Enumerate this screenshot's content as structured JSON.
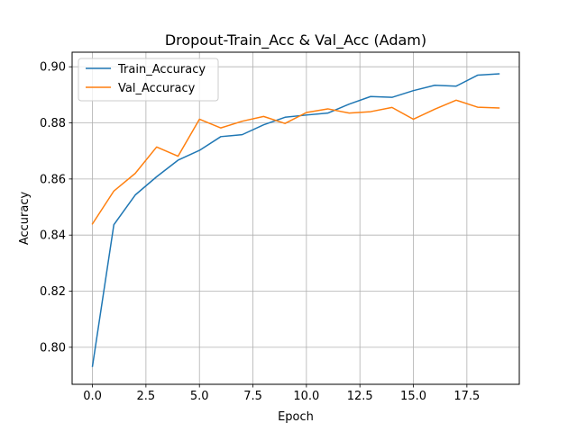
{
  "chart_data": {
    "type": "line",
    "title": "Dropout-Train_Acc & Val_Acc (Adam)",
    "xlabel": "Epoch",
    "ylabel": "Accuracy",
    "xlim": [
      -0.95,
      19.95
    ],
    "ylim": [
      0.7868,
      0.9052
    ],
    "grid": true,
    "legend_position": "top-left",
    "x": [
      0,
      1,
      2,
      3,
      4,
      5,
      6,
      7,
      8,
      9,
      10,
      11,
      12,
      13,
      14,
      15,
      16,
      17,
      18,
      19
    ],
    "x_ticks": [
      0.0,
      2.5,
      5.0,
      7.5,
      10.0,
      12.5,
      15.0,
      17.5
    ],
    "x_tick_labels": [
      "0.0",
      "2.5",
      "5.0",
      "7.5",
      "10.0",
      "12.5",
      "15.0",
      "17.5"
    ],
    "y_ticks": [
      0.8,
      0.82,
      0.84,
      0.86,
      0.88,
      0.9
    ],
    "y_tick_labels": [
      "0.80",
      "0.82",
      "0.84",
      "0.86",
      "0.88",
      "0.90"
    ],
    "series": [
      {
        "name": "Train_Accuracy",
        "color": "#1f77b4",
        "values": [
          0.7932,
          0.8437,
          0.8543,
          0.8608,
          0.8667,
          0.8702,
          0.8751,
          0.8758,
          0.8793,
          0.882,
          0.8828,
          0.8835,
          0.8867,
          0.8894,
          0.8891,
          0.8915,
          0.8934,
          0.8931,
          0.897,
          0.8975
        ]
      },
      {
        "name": "Val_Accuracy",
        "color": "#ff7f0e",
        "values": [
          0.844,
          0.8557,
          0.862,
          0.8714,
          0.8681,
          0.8813,
          0.8782,
          0.8806,
          0.8823,
          0.8798,
          0.8837,
          0.885,
          0.8835,
          0.884,
          0.8855,
          0.8813,
          0.8849,
          0.8881,
          0.8856,
          0.8853
        ]
      }
    ]
  }
}
